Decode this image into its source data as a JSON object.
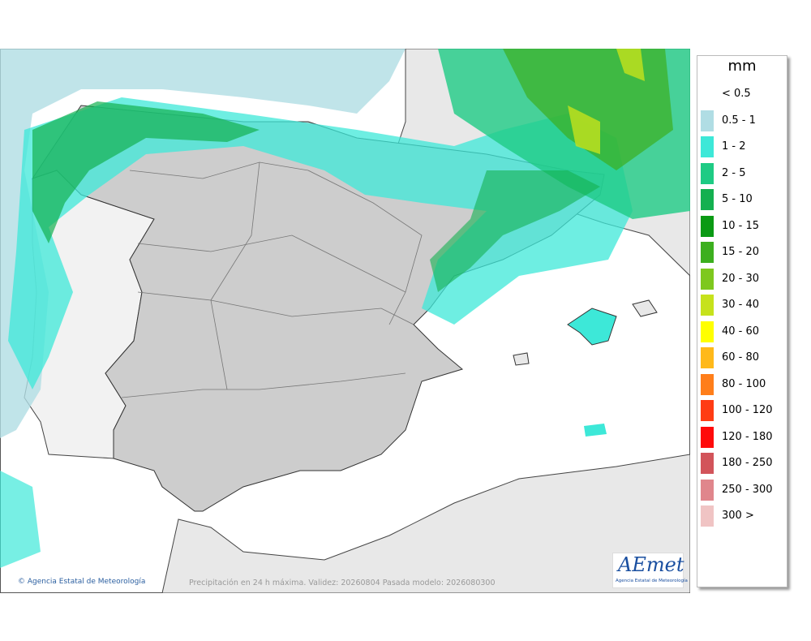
{
  "map": {
    "credit": "Agencia Estatal de Meteorología",
    "caption": "Precipitación en 24 h máxima. Validez: 20260804 Pasada modelo: 2026080300",
    "logo": {
      "text": "AEmet",
      "subtitle": "Agencia Estatal de Meteorología"
    }
  },
  "legend": {
    "title": "mm",
    "items": [
      {
        "label": "< 0.5"
      },
      {
        "label": "0.5 - 1",
        "color": "#b0dde4"
      },
      {
        "label": "1 - 2",
        "color": "#3de8d8"
      },
      {
        "label": "2 - 5",
        "color": "#1ecb84"
      },
      {
        "label": "5 - 10",
        "color": "#14b050"
      },
      {
        "label": "10 - 15",
        "color": "#0a9a14"
      },
      {
        "label": "15 - 20",
        "color": "#3caf1e"
      },
      {
        "label": "20 - 30",
        "color": "#7ec81e"
      },
      {
        "label": "30 - 40",
        "color": "#c6e21c"
      },
      {
        "label": "40 - 60",
        "color": "#ffff00"
      },
      {
        "label": "60 - 80",
        "color": "#ffb91a"
      },
      {
        "label": "80 - 100",
        "color": "#ff7e1a"
      },
      {
        "label": "100 - 120",
        "color": "#ff3c14"
      },
      {
        "label": "120 - 180",
        "color": "#ff0a0a"
      },
      {
        "label": "180 - 250",
        "color": "#d2545a"
      },
      {
        "label": "250 - 300",
        "color": "#e0868c"
      },
      {
        "label": "300 >",
        "color": "#f0c4c4"
      }
    ]
  }
}
